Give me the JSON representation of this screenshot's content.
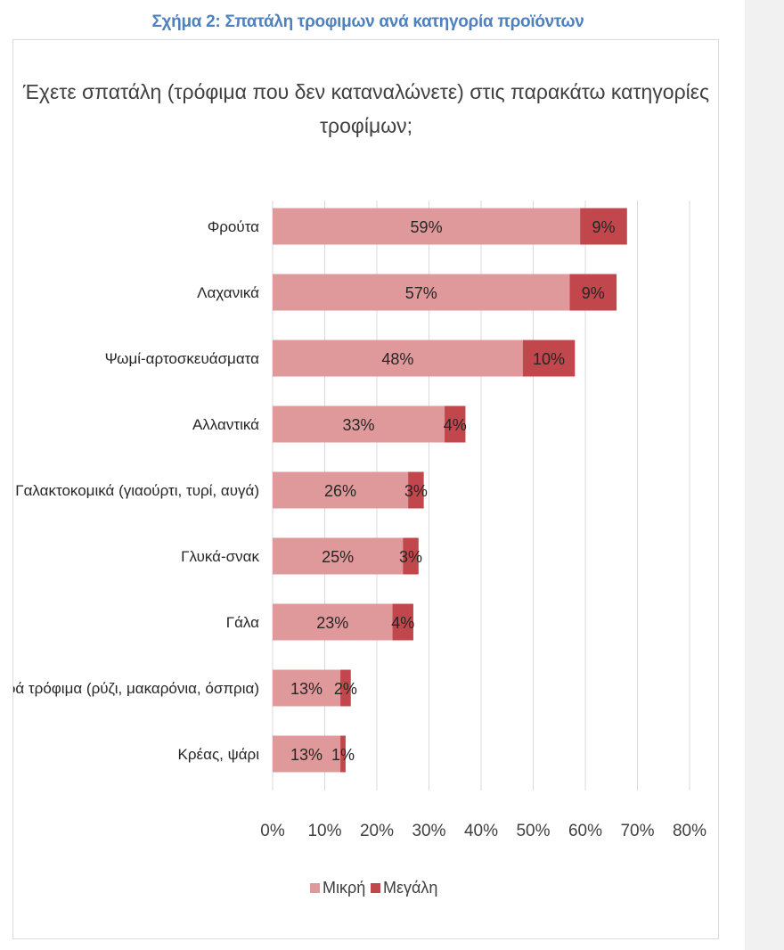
{
  "figure_caption": "Σχήμα 2: Σπατάλη τροφιμων ανά κατηγορία προϊόντων",
  "colors": {
    "small": "#e0999b",
    "large": "#c1474c",
    "caption": "#4f81bd",
    "grid": "#d9d9d9"
  },
  "chart_data": {
    "type": "bar",
    "orientation": "horizontal",
    "stacked": true,
    "title_lines": [
      "Έχετε σπατάλη (τρόφιμα που δεν καταναλώνετε) στις παρακάτω κατηγορίες",
      "τροφίμων;"
    ],
    "categories": [
      "Φρούτα",
      "Λαχανικά",
      "Ψωμί-αρτοσκευάσματα",
      "Αλλαντικά",
      "Γαλακτοκομικά (γιαούρτι, τυρί, αυγά)",
      "Γλυκά-σνακ",
      "Γάλα",
      "Ξηρά τρόφιμα (ρύζι, μακαρόνια, όσπρια)",
      "Κρέας, ψάρι"
    ],
    "series": [
      {
        "name": "Μικρή",
        "values": [
          59,
          57,
          48,
          33,
          26,
          25,
          23,
          13,
          13
        ]
      },
      {
        "name": "Μεγάλη",
        "values": [
          9,
          9,
          10,
          4,
          3,
          3,
          4,
          2,
          1
        ]
      }
    ],
    "data_labels": [
      [
        "59%",
        "57%",
        "48%",
        "33%",
        "26%",
        "25%",
        "23%",
        "13%",
        "13%"
      ],
      [
        "9%",
        "9%",
        "10%",
        "4%",
        "3%",
        "3%",
        "4%",
        "2%",
        "1%"
      ]
    ],
    "xlim": [
      0,
      80
    ],
    "x_ticks": [
      0,
      10,
      20,
      30,
      40,
      50,
      60,
      70,
      80
    ],
    "x_tick_labels": [
      "0%",
      "10%",
      "20%",
      "30%",
      "40%",
      "50%",
      "60%",
      "70%",
      "80%"
    ],
    "grid": true,
    "legend_position": "bottom"
  }
}
